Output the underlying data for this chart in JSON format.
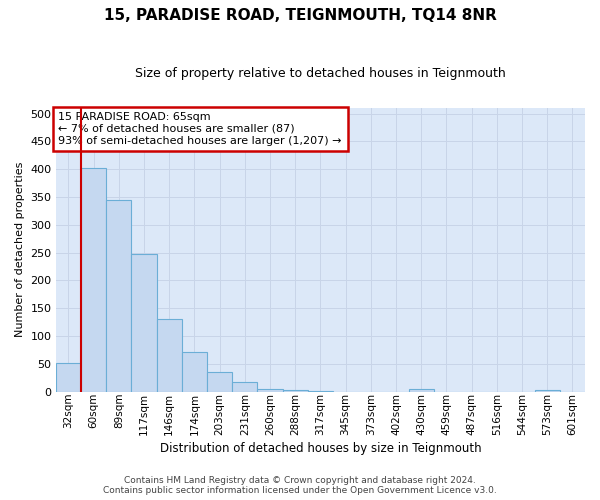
{
  "title": "15, PARADISE ROAD, TEIGNMOUTH, TQ14 8NR",
  "subtitle": "Size of property relative to detached houses in Teignmouth",
  "xlabel": "Distribution of detached houses by size in Teignmouth",
  "ylabel": "Number of detached properties",
  "bar_color": "#c5d8f0",
  "bar_edge_color": "#6baed6",
  "vline_color": "#cc0000",
  "vline_x": 0.5,
  "annotation_box_color": "#cc0000",
  "annotation_text_line1": "15 PARADISE ROAD: 65sqm",
  "annotation_text_line2": "← 7% of detached houses are smaller (87)",
  "annotation_text_line3": "93% of semi-detached houses are larger (1,207) →",
  "categories": [
    "32sqm",
    "60sqm",
    "89sqm",
    "117sqm",
    "146sqm",
    "174sqm",
    "203sqm",
    "231sqm",
    "260sqm",
    "288sqm",
    "317sqm",
    "345sqm",
    "373sqm",
    "402sqm",
    "430sqm",
    "459sqm",
    "487sqm",
    "516sqm",
    "544sqm",
    "573sqm",
    "601sqm"
  ],
  "values": [
    52,
    403,
    344,
    248,
    131,
    72,
    35,
    18,
    5,
    2,
    1,
    0,
    0,
    0,
    5,
    0,
    0,
    0,
    0,
    3,
    0
  ],
  "ylim": [
    0,
    510
  ],
  "yticks": [
    0,
    50,
    100,
    150,
    200,
    250,
    300,
    350,
    400,
    450,
    500
  ],
  "background_color": "#ffffff",
  "grid_color": "#c8d4e8",
  "axes_bg_color": "#dce8f8",
  "footer_line1": "Contains HM Land Registry data © Crown copyright and database right 2024.",
  "footer_line2": "Contains public sector information licensed under the Open Government Licence v3.0."
}
